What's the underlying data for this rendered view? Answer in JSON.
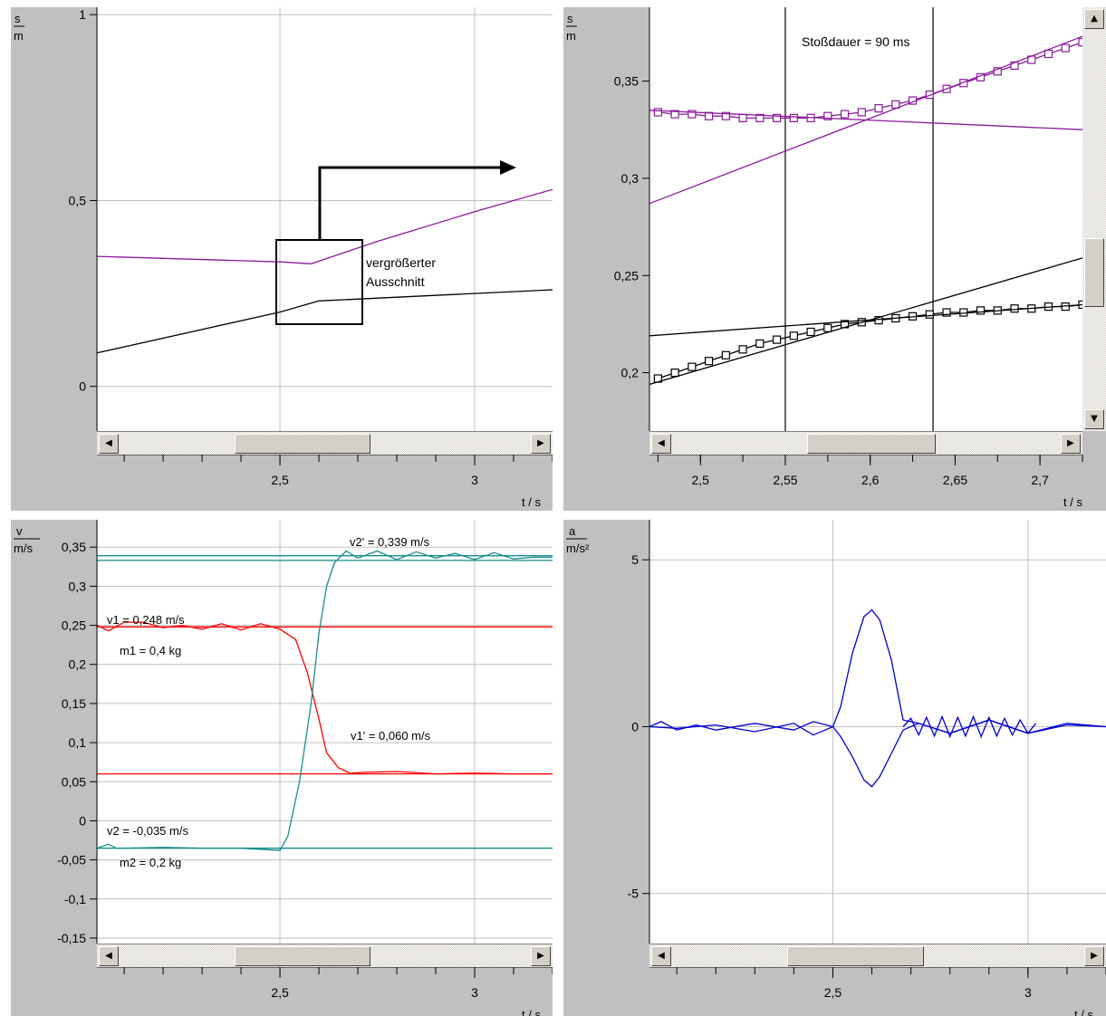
{
  "colors": {
    "purple": "#8b1a9b",
    "black": "#000000",
    "red": "#ff0000",
    "teal": "#1a8c8c",
    "blue": "#0000d0",
    "panel": "#c0c0c0",
    "grid": "#c0c0c0"
  },
  "icons": {
    "left_arrow": "◀",
    "right_arrow": "▶",
    "up_arrow": "▲",
    "down_arrow": "▼"
  },
  "panels": {
    "top_left": {
      "y_unit_top": "s",
      "y_unit_bottom": "m",
      "x_unit": "t / s",
      "y_ticks": [
        {
          "v": 1,
          "label": "1"
        },
        {
          "v": 0.5,
          "label": "0,5"
        },
        {
          "v": 0,
          "label": "0"
        }
      ],
      "x_ticks": [
        {
          "v": 2.5,
          "label": "2,5"
        },
        {
          "v": 3,
          "label": "3"
        }
      ],
      "annotation_line1": "vergrößerter",
      "annotation_line2": "Ausschnitt",
      "scroll_pos": 0.42
    },
    "top_right": {
      "y_unit_top": "s",
      "y_unit_bottom": "m",
      "x_unit": "t / s",
      "y_ticks": [
        {
          "v": 0.35,
          "label": "0,35"
        },
        {
          "v": 0.3,
          "label": "0,3"
        },
        {
          "v": 0.25,
          "label": "0,25"
        },
        {
          "v": 0.2,
          "label": "0,2"
        }
      ],
      "x_ticks": [
        {
          "v": 2.5,
          "label": "2,5"
        },
        {
          "v": 2.55,
          "label": "2,55"
        },
        {
          "v": 2.6,
          "label": "2,6"
        },
        {
          "v": 2.65,
          "label": "2,65"
        },
        {
          "v": 2.7,
          "label": "2,7"
        }
      ],
      "annotation": "Stoßdauer = 90 ms",
      "scroll_pos": 0.52
    },
    "bottom_left": {
      "y_unit_top": "v",
      "y_unit_bottom": "m/s",
      "x_unit": "t / s",
      "y_ticks": [
        {
          "v": 0.35,
          "label": "0,35"
        },
        {
          "v": 0.3,
          "label": "0,3"
        },
        {
          "v": 0.25,
          "label": "0,25"
        },
        {
          "v": 0.2,
          "label": "0,2"
        },
        {
          "v": 0.15,
          "label": "0,15"
        },
        {
          "v": 0.1,
          "label": "0,1"
        },
        {
          "v": 0.05,
          "label": "0,05"
        },
        {
          "v": 0,
          "label": "0"
        },
        {
          "v": -0.05,
          "label": "-0,05"
        },
        {
          "v": -0.1,
          "label": "-0,1"
        },
        {
          "v": -0.15,
          "label": "-0,15"
        }
      ],
      "x_ticks": [
        {
          "v": 2.5,
          "label": "2,5"
        },
        {
          "v": 3,
          "label": "3"
        }
      ],
      "label_v2p": "v2' = 0,339 m/s",
      "label_v1": "v1 = 0,248 m/s",
      "label_m1": "m1 = 0,4 kg",
      "label_v1p": "v1' = 0,060 m/s",
      "label_v2": "v2 = -0,035 m/s",
      "label_m2": "m2 = 0,2 kg",
      "scroll_pos": 0.42
    },
    "bottom_right": {
      "y_unit_top": "a",
      "y_unit_bottom": "m/s²",
      "x_unit": "t / s",
      "y_ticks": [
        {
          "v": 5,
          "label": "5"
        },
        {
          "v": 0,
          "label": "0"
        },
        {
          "v": -5,
          "label": "-5"
        }
      ],
      "x_ticks": [
        {
          "v": 2.5,
          "label": "2,5"
        },
        {
          "v": 3,
          "label": "3"
        }
      ],
      "scroll_pos": 0.42
    }
  },
  "chart_data": [
    {
      "type": "line",
      "x_range": [
        2.03,
        3.2
      ],
      "ylim": [
        -0.12,
        1.02
      ],
      "series": [
        {
          "color": "purple",
          "x": [
            2.03,
            2.5,
            2.58,
            2.75,
            3.0,
            3.2
          ],
          "y": [
            0.35,
            0.335,
            0.33,
            0.39,
            0.47,
            0.53
          ]
        },
        {
          "color": "black",
          "x": [
            2.03,
            2.5,
            2.6,
            3.2
          ],
          "y": [
            0.09,
            0.2,
            0.23,
            0.26
          ]
        }
      ]
    },
    {
      "type": "line",
      "x_range": [
        2.47,
        2.725
      ],
      "ylim": [
        0.17,
        0.388
      ],
      "series": [
        {
          "color": "purple",
          "markers": true,
          "x": [
            2.475,
            2.485,
            2.495,
            2.505,
            2.515,
            2.525,
            2.535,
            2.545,
            2.555,
            2.565,
            2.575,
            2.585,
            2.595,
            2.605,
            2.615,
            2.625,
            2.635,
            2.645,
            2.655,
            2.665,
            2.675,
            2.685,
            2.695,
            2.705,
            2.715,
            2.725
          ],
          "y": [
            0.334,
            0.333,
            0.333,
            0.332,
            0.332,
            0.331,
            0.331,
            0.331,
            0.331,
            0.331,
            0.332,
            0.333,
            0.334,
            0.336,
            0.338,
            0.34,
            0.343,
            0.346,
            0.349,
            0.352,
            0.355,
            0.358,
            0.361,
            0.364,
            0.367,
            0.37
          ]
        },
        {
          "color": "purple",
          "x": [
            2.47,
            2.725
          ],
          "y": [
            0.287,
            0.373
          ]
        },
        {
          "color": "purple",
          "x": [
            2.47,
            2.725
          ],
          "y": [
            0.335,
            0.325
          ]
        },
        {
          "color": "black",
          "markers": true,
          "x": [
            2.475,
            2.485,
            2.495,
            2.505,
            2.515,
            2.525,
            2.535,
            2.545,
            2.555,
            2.565,
            2.575,
            2.585,
            2.595,
            2.605,
            2.615,
            2.625,
            2.635,
            2.645,
            2.655,
            2.665,
            2.675,
            2.685,
            2.695,
            2.705,
            2.715,
            2.725
          ],
          "y": [
            0.197,
            0.2,
            0.203,
            0.206,
            0.209,
            0.212,
            0.215,
            0.217,
            0.219,
            0.221,
            0.223,
            0.225,
            0.226,
            0.227,
            0.228,
            0.229,
            0.23,
            0.231,
            0.231,
            0.232,
            0.232,
            0.233,
            0.233,
            0.234,
            0.234,
            0.235
          ]
        },
        {
          "color": "black",
          "x": [
            2.47,
            2.725
          ],
          "y": [
            0.194,
            0.259
          ]
        },
        {
          "color": "black",
          "x": [
            2.47,
            2.725
          ],
          "y": [
            0.219,
            0.235
          ]
        }
      ],
      "vlines": [
        2.55,
        2.637
      ]
    },
    {
      "type": "line",
      "x_range": [
        2.03,
        3.2
      ],
      "ylim": [
        -0.157,
        0.385
      ],
      "series": [
        {
          "color": "red",
          "x": [
            2.03,
            2.06,
            2.1,
            2.15,
            2.2,
            2.25,
            2.3,
            2.35,
            2.4,
            2.45,
            2.5,
            2.54,
            2.57,
            2.6,
            2.62,
            2.65,
            2.68,
            2.72,
            2.8,
            2.9,
            3.0,
            3.1,
            3.2
          ],
          "y": [
            0.25,
            0.243,
            0.254,
            0.254,
            0.247,
            0.25,
            0.245,
            0.252,
            0.244,
            0.252,
            0.245,
            0.232,
            0.19,
            0.13,
            0.087,
            0.068,
            0.061,
            0.062,
            0.063,
            0.06,
            0.061,
            0.06,
            0.06
          ]
        },
        {
          "color": "red",
          "x": [
            2.03,
            3.2
          ],
          "y": [
            0.248,
            0.248
          ]
        },
        {
          "color": "red",
          "x": [
            2.03,
            3.2
          ],
          "y": [
            0.06,
            0.06
          ]
        },
        {
          "color": "teal",
          "x": [
            2.03,
            2.06,
            2.08,
            2.1,
            2.2,
            2.3,
            2.4,
            2.5,
            2.52,
            2.55,
            2.58,
            2.6,
            2.62,
            2.64,
            2.67,
            2.7,
            2.75,
            2.8,
            2.85,
            2.9,
            2.95,
            3.0,
            3.05,
            3.1,
            3.15,
            3.2
          ],
          "y": [
            -0.035,
            -0.03,
            -0.035,
            -0.035,
            -0.034,
            -0.035,
            -0.035,
            -0.038,
            -0.02,
            0.05,
            0.15,
            0.24,
            0.3,
            0.33,
            0.345,
            0.336,
            0.345,
            0.334,
            0.344,
            0.336,
            0.342,
            0.334,
            0.343,
            0.335,
            0.337,
            0.337
          ]
        },
        {
          "color": "teal",
          "x": [
            2.03,
            3.2
          ],
          "y": [
            0.339,
            0.339
          ]
        },
        {
          "color": "teal",
          "x": [
            2.03,
            3.2
          ],
          "y": [
            0.333,
            0.333
          ]
        },
        {
          "color": "teal",
          "x": [
            2.03,
            3.2
          ],
          "y": [
            -0.035,
            -0.035
          ]
        }
      ]
    },
    {
      "type": "line",
      "x_range": [
        2.03,
        3.2
      ],
      "ylim": [
        -6.5,
        6.2
      ],
      "series": [
        {
          "color": "blue",
          "x": [
            2.03,
            2.06,
            2.1,
            2.15,
            2.2,
            2.3,
            2.4,
            2.45,
            2.5,
            2.52,
            2.55,
            2.58,
            2.6,
            2.62,
            2.65,
            2.68,
            2.72,
            2.8,
            2.9,
            3.0,
            3.1,
            3.2
          ],
          "y": [
            0,
            0.15,
            -0.1,
            0.05,
            -0.1,
            0.1,
            -0.1,
            0.15,
            0,
            0.6,
            2.2,
            3.3,
            3.5,
            3.2,
            2.0,
            0.2,
            0.1,
            -0.2,
            0.2,
            -0.2,
            0.1,
            0
          ]
        },
        {
          "color": "blue",
          "x": [
            2.03,
            2.1,
            2.2,
            2.3,
            2.4,
            2.45,
            2.5,
            2.52,
            2.55,
            2.58,
            2.6,
            2.62,
            2.65,
            2.68,
            2.72,
            2.8,
            2.9,
            3.0,
            3.1,
            3.2
          ],
          "y": [
            0,
            -0.05,
            0.05,
            -0.15,
            0.1,
            -0.25,
            0,
            -0.3,
            -0.9,
            -1.6,
            -1.8,
            -1.5,
            -0.8,
            -0.1,
            0.1,
            -0.2,
            0.2,
            -0.2,
            0.05,
            0
          ]
        },
        {
          "color": "blue",
          "x": [
            2.68,
            2.7,
            2.72,
            2.74,
            2.76,
            2.78,
            2.8,
            2.82,
            2.84,
            2.86,
            2.88,
            2.9,
            2.92,
            2.94,
            2.96,
            2.98,
            3.0,
            3.02
          ],
          "y": [
            0,
            0.25,
            -0.25,
            0.28,
            -0.28,
            0.3,
            -0.3,
            0.28,
            -0.28,
            0.3,
            -0.3,
            0.28,
            -0.28,
            0.25,
            -0.25,
            0.2,
            -0.2,
            0.1
          ]
        }
      ]
    }
  ]
}
